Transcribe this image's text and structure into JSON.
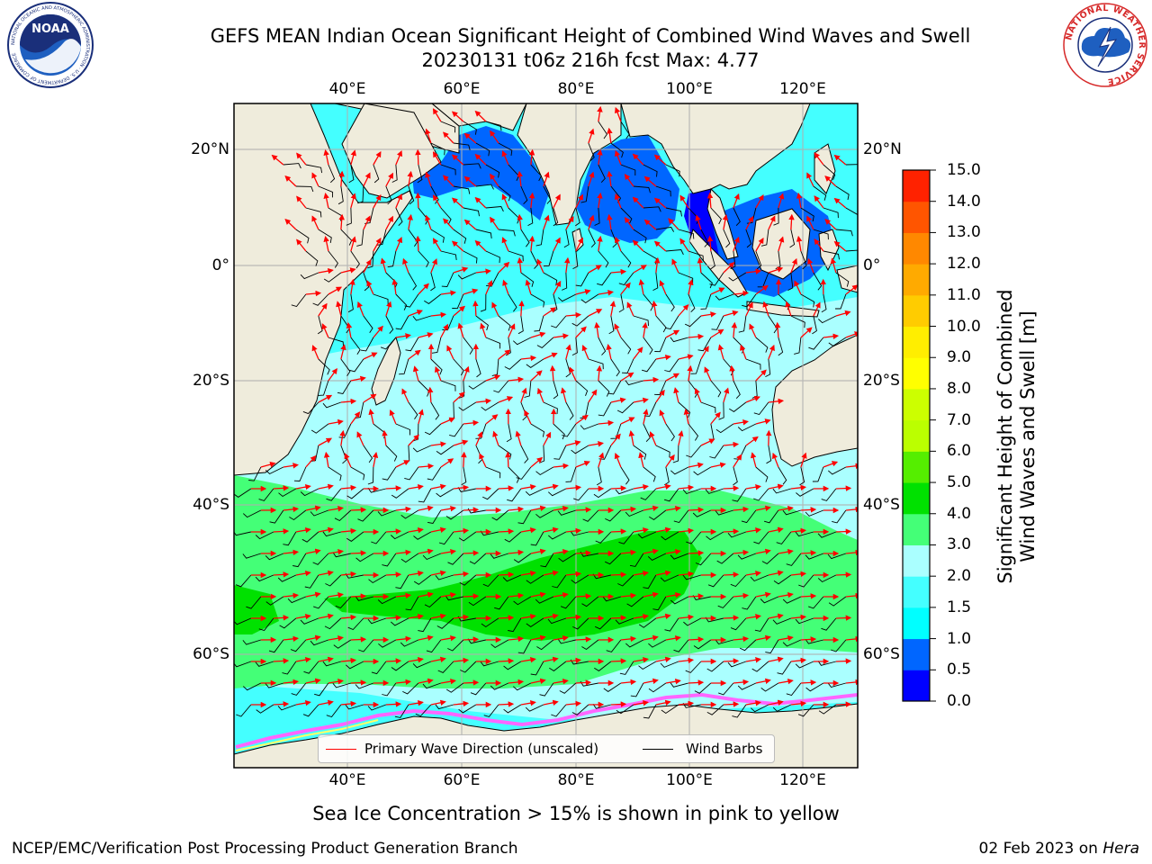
{
  "title": {
    "line1": "GEFS MEAN Indian Ocean Significant Height of Combined Wind Waves and Swell",
    "line2": "20230131 t06z 216h fcst   Max: 4.77"
  },
  "map": {
    "region": "Indian Ocean",
    "lon_labels": [
      "40°E",
      "60°E",
      "80°E",
      "100°E",
      "120°E"
    ],
    "lat_labels": [
      "20°N",
      "0°",
      "20°S",
      "40°S",
      "60°S"
    ],
    "colors": {
      "land": "#efecdc",
      "outside": "#ffffff",
      "wave_direction": "#ff0000",
      "wind_barb": "#000000",
      "sea_ice": [
        "#ff66ff",
        "#ff9999",
        "#ffff66"
      ]
    }
  },
  "legend": {
    "items": [
      {
        "label": "Primary Wave Direction (unscaled)",
        "color": "#ff0000"
      },
      {
        "label": "Wind Barbs",
        "color": "#000000"
      }
    ]
  },
  "colorbar": {
    "label_line1": "Significant Height of Combined",
    "label_line2": "Wind Waves and Swell [m]",
    "ticks": [
      "0.0",
      "0.5",
      "1.0",
      "1.5",
      "2.0",
      "3.0",
      "4.0",
      "5.0",
      "6.0",
      "7.0",
      "8.0",
      "9.0",
      "10.0",
      "11.0",
      "12.0",
      "13.0",
      "14.0",
      "15.0"
    ],
    "colors": [
      "#0000ff",
      "#0066ff",
      "#00ffff",
      "#44ffff",
      "#aaffff",
      "#44ff77",
      "#00e100",
      "#55ee00",
      "#bbff00",
      "#ccff00",
      "#ffff00",
      "#ffee00",
      "#ffcc00",
      "#ffaa00",
      "#ff8800",
      "#ff5500",
      "#ff2200"
    ]
  },
  "note": "Sea Ice Concentration > 15% is shown in pink to yellow",
  "footer": {
    "left": "NCEP/EMC/Verification Post Processing Product Generation Branch",
    "right_prefix": "02 Feb 2023 on ",
    "right_machine": "Hera"
  },
  "logos": {
    "noaa": {
      "text": "NOAA",
      "ring_text": "NATIONAL OCEANIC AND ATMOSPHERIC ADMINISTRATION · U.S. DEPARTMENT OF COMMERCE"
    },
    "nws": {
      "ring_text": "NATIONAL WEATHER SERVICE"
    }
  }
}
